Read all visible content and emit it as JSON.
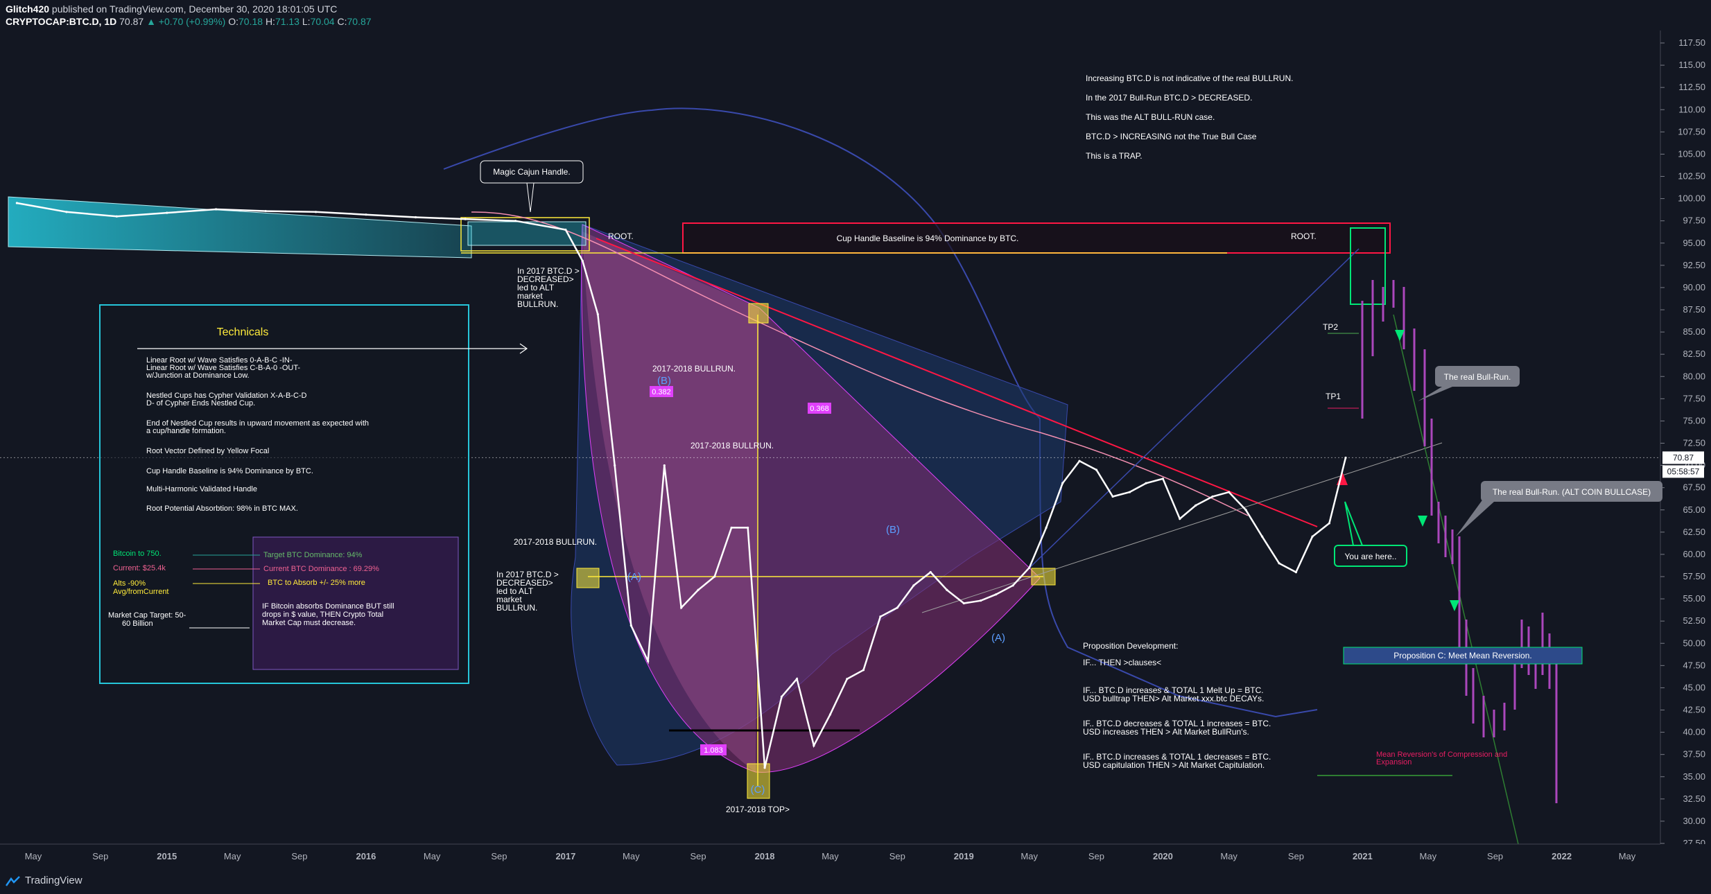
{
  "header": {
    "author": "Glitch420",
    "published": "published on TradingView.com, December 30, 2020 18:01:05 UTC",
    "symbol": "CRYPTOCAP:BTC.D, 1D",
    "last": "70.87",
    "change": "▲ +0.70 (+0.99%)",
    "ohlc_o_label": "O:",
    "ohlc_o": "70.18",
    "ohlc_h_label": "H:",
    "ohlc_h": "71.13",
    "ohlc_l_label": "L:",
    "ohlc_l": "70.04",
    "ohlc_c_label": "C:",
    "ohlc_c": "70.87"
  },
  "footer": {
    "brand": "TradingView"
  },
  "price_axis": {
    "labels": [
      "117.50",
      "115.00",
      "112.50",
      "110.00",
      "107.50",
      "105.00",
      "102.50",
      "100.00",
      "97.50",
      "95.00",
      "92.50",
      "90.00",
      "87.50",
      "85.00",
      "82.50",
      "80.00",
      "77.50",
      "75.00",
      "72.50",
      "70.00",
      "67.50",
      "65.00",
      "62.50",
      "60.00",
      "57.50",
      "55.00",
      "52.50",
      "50.00",
      "47.50",
      "45.00",
      "42.50",
      "40.00",
      "37.50",
      "35.00",
      "32.50",
      "30.00",
      "27.50"
    ],
    "current_price": "70.87",
    "countdown": "05:58:57",
    "colors": {
      "current_bg": "#ffffff",
      "countdown_bg": "#ffffff"
    }
  },
  "time_axis": {
    "labels": [
      "May",
      "Sep",
      "2015",
      "May",
      "Sep",
      "2016",
      "May",
      "Sep",
      "2017",
      "May",
      "Sep",
      "2018",
      "May",
      "Sep",
      "2019",
      "May",
      "Sep",
      "2020",
      "May",
      "Sep",
      "2021",
      "May",
      "Sep",
      "2022",
      "May"
    ]
  },
  "annotations": {
    "magic_handle": "Magic Cajun Handle.",
    "root_left": "ROOT.",
    "root_right": "ROOT.",
    "cup_baseline": "Cup Handle Baseline is 94% Dominance by BTC.",
    "btc_decreased_top": [
      "In 2017 BTC.D >",
      "DECREASED>",
      "led to ALT",
      "market",
      "BULLRUN."
    ],
    "btc_decreased_bottom": [
      "In 2017 BTC.D >",
      "DECREASED>",
      "led to ALT",
      "market",
      "BULLRUN."
    ],
    "bullrun_1": "2017-2018 BULLRUN.",
    "bullrun_2": "2017-2018 BULLRUN.",
    "bullrun_3": "2017-2018 BULLRUN.",
    "top_2018": "2017-2018 TOP>",
    "fib_382": "0.382",
    "fib_368": "0.368",
    "fib_1083": "1.083",
    "wave_b1": "(B)",
    "wave_a1": "(A)",
    "wave_c1": "(C)",
    "wave_b2": "(B)",
    "wave_a2": "(A)",
    "tp1": "TP1",
    "tp2": "TP2",
    "you_are_here": "You are here..",
    "real_bullrun": "The real Bull-Run.",
    "real_bullrun_alt": "The real Bull-Run. (ALT COIN BULLCASE)",
    "proposition_c": "Proposition C: Meet Mean Reversion.",
    "mean_reversion": [
      "Mean Reversion's of Compression and",
      "Expansion"
    ],
    "top_text": [
      "Increasing BTC.D is not indicative of the real  BULLRUN.",
      "In the 2017 Bull-Run BTC.D > DECREASED.",
      "This was the ALT BULL-RUN case.",
      "BTC.D > INCREASING not the True Bull Case",
      "This is a TRAP."
    ],
    "proposition_text": [
      "Proposition Development:",
      "IF... THEN >clauses<",
      "IF... BTC.D increases & TOTAL 1 Melt Up = BTC.",
      "USD bulltrap THEN> Alt Market xxx.btc DECAYs.",
      "IF.. BTC.D decreases & TOTAL 1 increases = BTC.",
      "USD increases THEN > Alt Market  BullRun's.",
      "IF.. BTC.D increases & TOTAL 1 decreases = BTC.",
      "USD capitulation THEN > Alt Market Capitulation."
    ]
  },
  "technicals": {
    "title": "Technicals",
    "lines": [
      "Linear Root w/ Wave Satisfies 0-A-B-C -IN-",
      "Linear Root w/ Wave Satisfies C-B-A-0 -OUT-",
      "w/Junction at Dominance Low.",
      "Nestled Cups has Cypher Validation X-A-B-C-D",
      "D- of Cypher Ends Nestled Cup.",
      "End of Nestled Cup results in upward movement as expected with",
      "a cup/handle formation.",
      "Root Vector Defined by Yellow Focal",
      "Cup Handle Baseline is 94% Dominance by BTC.",
      "Multi-Harmonic Validated Handle",
      "Root Potential Absorbtion: 98% in BTC MAX."
    ],
    "left_labels": [
      "Bitcoin to 750.",
      "Current: $25.4k",
      "Alts -90%",
      "Avg/fromCurrent",
      "Market Cap Target: 50-",
      "60 Billion"
    ],
    "right_labels": [
      "Target BTC Dominance: 94%",
      "Current BTC Dominance : 69.29%",
      "BTC to Absorb +/- 25% more",
      "IF Bitcoin absorbs Dominance BUT still",
      "drops in $ value, THEN Crypto Total",
      "Market Cap must decrease."
    ],
    "colors": {
      "border": "#26c6da",
      "title": "#ffeb3b",
      "green": "#00e676",
      "pink": "#f06292",
      "yellow": "#ffeb3b",
      "purple_box": "#311b4a"
    }
  },
  "chart_data": {
    "type": "line",
    "title": "",
    "symbol": "CRYPTOCAP:BTC.D",
    "interval": "1D",
    "xlabel": "",
    "ylabel": "",
    "ylim": [
      27.5,
      117.5
    ],
    "x_range": [
      "2014-03",
      "2022-07"
    ],
    "grid": false,
    "series": [
      {
        "name": "BTC.D",
        "color": "#ffffff",
        "x": [
          "2014-04",
          "2014-07",
          "2014-10",
          "2015-01",
          "2015-04",
          "2015-07",
          "2015-10",
          "2016-01",
          "2016-04",
          "2016-07",
          "2016-10",
          "2017-01",
          "2017-02",
          "2017-03",
          "2017-04",
          "2017-05",
          "2017-06",
          "2017-07",
          "2017-08",
          "2017-09",
          "2017-10",
          "2017-11",
          "2017-12",
          "2018-01",
          "2018-02",
          "2018-03",
          "2018-04",
          "2018-05",
          "2018-06",
          "2018-07",
          "2018-08",
          "2018-09",
          "2018-10",
          "2018-11",
          "2018-12",
          "2019-01",
          "2019-02",
          "2019-03",
          "2019-04",
          "2019-05",
          "2019-06",
          "2019-07",
          "2019-08",
          "2019-09",
          "2019-10",
          "2019-11",
          "2019-12",
          "2020-01",
          "2020-02",
          "2020-03",
          "2020-04",
          "2020-05",
          "2020-06",
          "2020-07",
          "2020-08",
          "2020-09",
          "2020-10",
          "2020-11",
          "2020-12"
        ],
        "values": [
          99.5,
          98.5,
          98.0,
          98.4,
          98.8,
          98.6,
          98.5,
          98.2,
          97.9,
          97.7,
          97.5,
          96.5,
          93.0,
          87.0,
          70.0,
          52.0,
          48.0,
          70.0,
          54.0,
          56.0,
          57.5,
          63.0,
          63.0,
          36.0,
          44.0,
          46.0,
          38.5,
          42.0,
          46.0,
          47.0,
          53.0,
          54.0,
          56.5,
          58.0,
          56.0,
          54.5,
          54.8,
          55.5,
          56.5,
          58.5,
          63.0,
          68.0,
          70.5,
          69.5,
          66.5,
          67.0,
          68.0,
          68.5,
          64.0,
          65.5,
          66.5,
          67.0,
          65.0,
          62.0,
          59.0,
          58.0,
          62.0,
          63.5,
          70.87
        ]
      }
    ],
    "legend": "none"
  },
  "colors": {
    "background": "#131722",
    "price_line": "#ffffff",
    "red_resistance": "#ff1744",
    "yellow": "#ffeb3b",
    "cyan_fill": "#26c6da",
    "green": "#00e676",
    "purple": "#ab47bc",
    "magenta": "#e040fb",
    "blue_envelope": "#3949ab"
  }
}
